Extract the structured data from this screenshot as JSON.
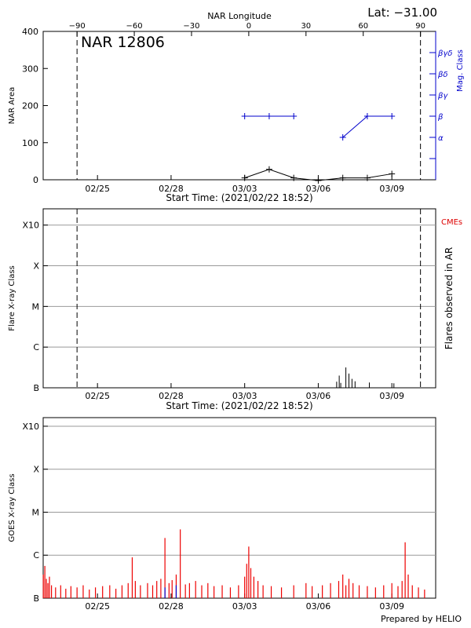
{
  "header": {
    "latitude_label": "Lat: −31.00",
    "footer": "Prepared by HELIO"
  },
  "colors": {
    "axis": "#000000",
    "grid": "#999999",
    "mag_class": "#0000cc",
    "cme": "#dd0000",
    "goes_red": "#ee0000",
    "goes_blue": "#0000cc"
  },
  "chart_data": [
    {
      "type": "line",
      "panel": "nar",
      "title": "NAR 12806",
      "x_tick_labels": [
        "02/25",
        "02/28",
        "03/03",
        "03/06",
        "03/09"
      ],
      "x_tick_dates": [
        "2021-02-25",
        "2021-02-28",
        "2021-03-03",
        "2021-03-06",
        "2021-03-09"
      ],
      "xlim": [
        "2021-02-22 18:52",
        "2021-03-10 18:52"
      ],
      "xlabel": "Start Time: (2021/02/22 18:52)",
      "top_axis": {
        "label": "NAR Longitude",
        "ticks": [
          "−90",
          "−60",
          "−30",
          "0",
          "30",
          "60",
          "90"
        ],
        "values": [
          -90,
          -60,
          -30,
          0,
          30,
          60,
          90
        ]
      },
      "ylabel": "NAR Area",
      "ylim": [
        0,
        400
      ],
      "y_ticks": [
        "0",
        "100",
        "200",
        "300",
        "400"
      ],
      "y_tick_values": [
        0,
        100,
        200,
        300,
        400
      ],
      "right_axis": {
        "label": "Mag. Class",
        "ticks": [
          "α",
          "β",
          "βγ",
          "βδ",
          "βγδ"
        ],
        "levels": [
          1,
          2,
          3,
          4,
          5
        ],
        "extra_tick_levels": [
          0
        ],
        "range": [
          -1,
          6
        ]
      },
      "disk_limits": [
        "2021-02-24 04:00",
        "2021-03-10 04:00"
      ],
      "series": [
        {
          "color": "black",
          "x": [
            "2021-03-03 00:00",
            "2021-03-04 00:00",
            "2021-03-05 00:00",
            "2021-03-06 00:00",
            "2021-03-07 00:00",
            "2021-03-08 00:00",
            "2021-03-09 00:00"
          ],
          "y": [
            5,
            28,
            5,
            -2,
            5,
            5,
            16
          ]
        },
        {
          "color": "blue",
          "axis": "right",
          "segments": [
            {
              "x": [
                "2021-03-03 00:00",
                "2021-03-04 00:00",
                "2021-03-05 00:00"
              ],
              "y": [
                2,
                2,
                2
              ]
            },
            {
              "x": [
                "2021-03-07 00:00",
                "2021-03-08 00:00",
                "2021-03-09 00:00"
              ],
              "y": [
                1,
                2,
                2
              ]
            }
          ]
        }
      ]
    },
    {
      "type": "bar",
      "panel": "flares",
      "x_tick_labels": [
        "02/25",
        "02/28",
        "03/03",
        "03/06",
        "03/09"
      ],
      "xlim": [
        "2021-02-22 18:52",
        "2021-03-10 18:52"
      ],
      "xlabel": "Start Time: (2021/02/22 18:52)",
      "ylabel": "Flare X-ray Class",
      "y_ticks": [
        "B",
        "C",
        "M",
        "X",
        "X10"
      ],
      "y_levels": [
        0,
        1,
        2,
        3,
        4
      ],
      "y_range": [
        0,
        4.4
      ],
      "right_label": "Flares observed in AR",
      "cme_label": "CMEs",
      "disk_limits": [
        "2021-02-24 04:00",
        "2021-03-10 04:00"
      ],
      "grid": true,
      "flares": {
        "x": [
          "2021-03-06 18:00",
          "2021-03-06 20:30",
          "2021-03-06 22:00",
          "2021-03-07 03:00",
          "2021-03-07 06:00",
          "2021-03-07 09:00",
          "2021-03-07 12:00",
          "2021-03-08 02:00",
          "2021-03-09 02:00"
        ],
        "y": [
          0.15,
          0.3,
          0.12,
          0.5,
          0.35,
          0.22,
          0.16,
          0.13,
          0.11
        ]
      }
    },
    {
      "type": "bar",
      "panel": "goes",
      "x_tick_labels": [
        "02/25",
        "02/28",
        "03/03",
        "03/06",
        "03/09"
      ],
      "xlim": [
        "2021-02-22 18:52",
        "2021-03-10 18:52"
      ],
      "xlabel": "",
      "ylabel": "GOES X-ray Class",
      "y_ticks": [
        "B",
        "C",
        "M",
        "X",
        "X10"
      ],
      "y_levels": [
        0,
        1,
        2,
        3,
        4
      ],
      "y_range": [
        0,
        4.2
      ],
      "grid": true,
      "series": [
        {
          "color": "red",
          "x": [
            "2021-02-22 19:00",
            "2021-02-22 20:30",
            "2021-02-22 22:00",
            "2021-02-22 23:30",
            "2021-02-23 01:00",
            "2021-02-23 03:00",
            "2021-02-23 07:00",
            "2021-02-23 12:00",
            "2021-02-23 17:00",
            "2021-02-23 22:00",
            "2021-02-24 04:00",
            "2021-02-24 10:00",
            "2021-02-24 16:00",
            "2021-02-24 22:00",
            "2021-02-25 05:00",
            "2021-02-25 12:00",
            "2021-02-25 18:00",
            "2021-02-26 00:00",
            "2021-02-26 06:00",
            "2021-02-26 10:00",
            "2021-02-26 13:00",
            "2021-02-26 18:00",
            "2021-02-27 01:00",
            "2021-02-27 06:00",
            "2021-02-27 10:00",
            "2021-02-27 14:00",
            "2021-02-27 18:00",
            "2021-02-27 22:00",
            "2021-02-28 01:00",
            "2021-02-28 05:00",
            "2021-02-28 09:00",
            "2021-02-28 14:00",
            "2021-02-28 18:00",
            "2021-03-01 00:00",
            "2021-03-01 06:00",
            "2021-03-01 12:00",
            "2021-03-01 18:00",
            "2021-03-02 02:00",
            "2021-03-02 10:00",
            "2021-03-02 18:00",
            "2021-03-03 00:00",
            "2021-03-03 02:00",
            "2021-03-03 04:00",
            "2021-03-03 06:00",
            "2021-03-03 09:00",
            "2021-03-03 13:00",
            "2021-03-03 18:00",
            "2021-03-04 02:00",
            "2021-03-04 12:00",
            "2021-03-05 00:00",
            "2021-03-05 12:00",
            "2021-03-05 18:00",
            "2021-03-06 04:00",
            "2021-03-06 12:00",
            "2021-03-06 20:00",
            "2021-03-07 00:00",
            "2021-03-07 03:00",
            "2021-03-07 06:00",
            "2021-03-07 10:00",
            "2021-03-07 16:00",
            "2021-03-08 00:00",
            "2021-03-08 08:00",
            "2021-03-08 16:00",
            "2021-03-09 00:00",
            "2021-03-09 06:00",
            "2021-03-09 10:00",
            "2021-03-09 13:00",
            "2021-03-09 16:00",
            "2021-03-09 20:00",
            "2021-03-10 02:00",
            "2021-03-10 08:00"
          ],
          "y": [
            0.55,
            0.75,
            0.45,
            0.35,
            0.5,
            0.3,
            0.25,
            0.3,
            0.22,
            0.28,
            0.25,
            0.3,
            0.2,
            0.25,
            0.28,
            0.3,
            0.22,
            0.3,
            0.35,
            0.95,
            0.4,
            0.3,
            0.35,
            0.3,
            0.4,
            0.45,
            1.4,
            0.35,
            0.42,
            0.55,
            1.6,
            0.32,
            0.35,
            0.4,
            0.3,
            0.35,
            0.28,
            0.3,
            0.25,
            0.3,
            0.5,
            0.8,
            1.2,
            0.7,
            0.5,
            0.4,
            0.3,
            0.28,
            0.25,
            0.3,
            0.35,
            0.28,
            0.3,
            0.35,
            0.4,
            0.55,
            0.3,
            0.45,
            0.35,
            0.3,
            0.28,
            0.25,
            0.3,
            0.35,
            0.28,
            0.4,
            1.3,
            0.55,
            0.3,
            0.25,
            0.2
          ]
        },
        {
          "color": "blue",
          "x": [
            "2021-02-27 18:00",
            "2021-02-28 05:00"
          ],
          "y": [
            0.25,
            0.3
          ]
        }
      ]
    }
  ]
}
